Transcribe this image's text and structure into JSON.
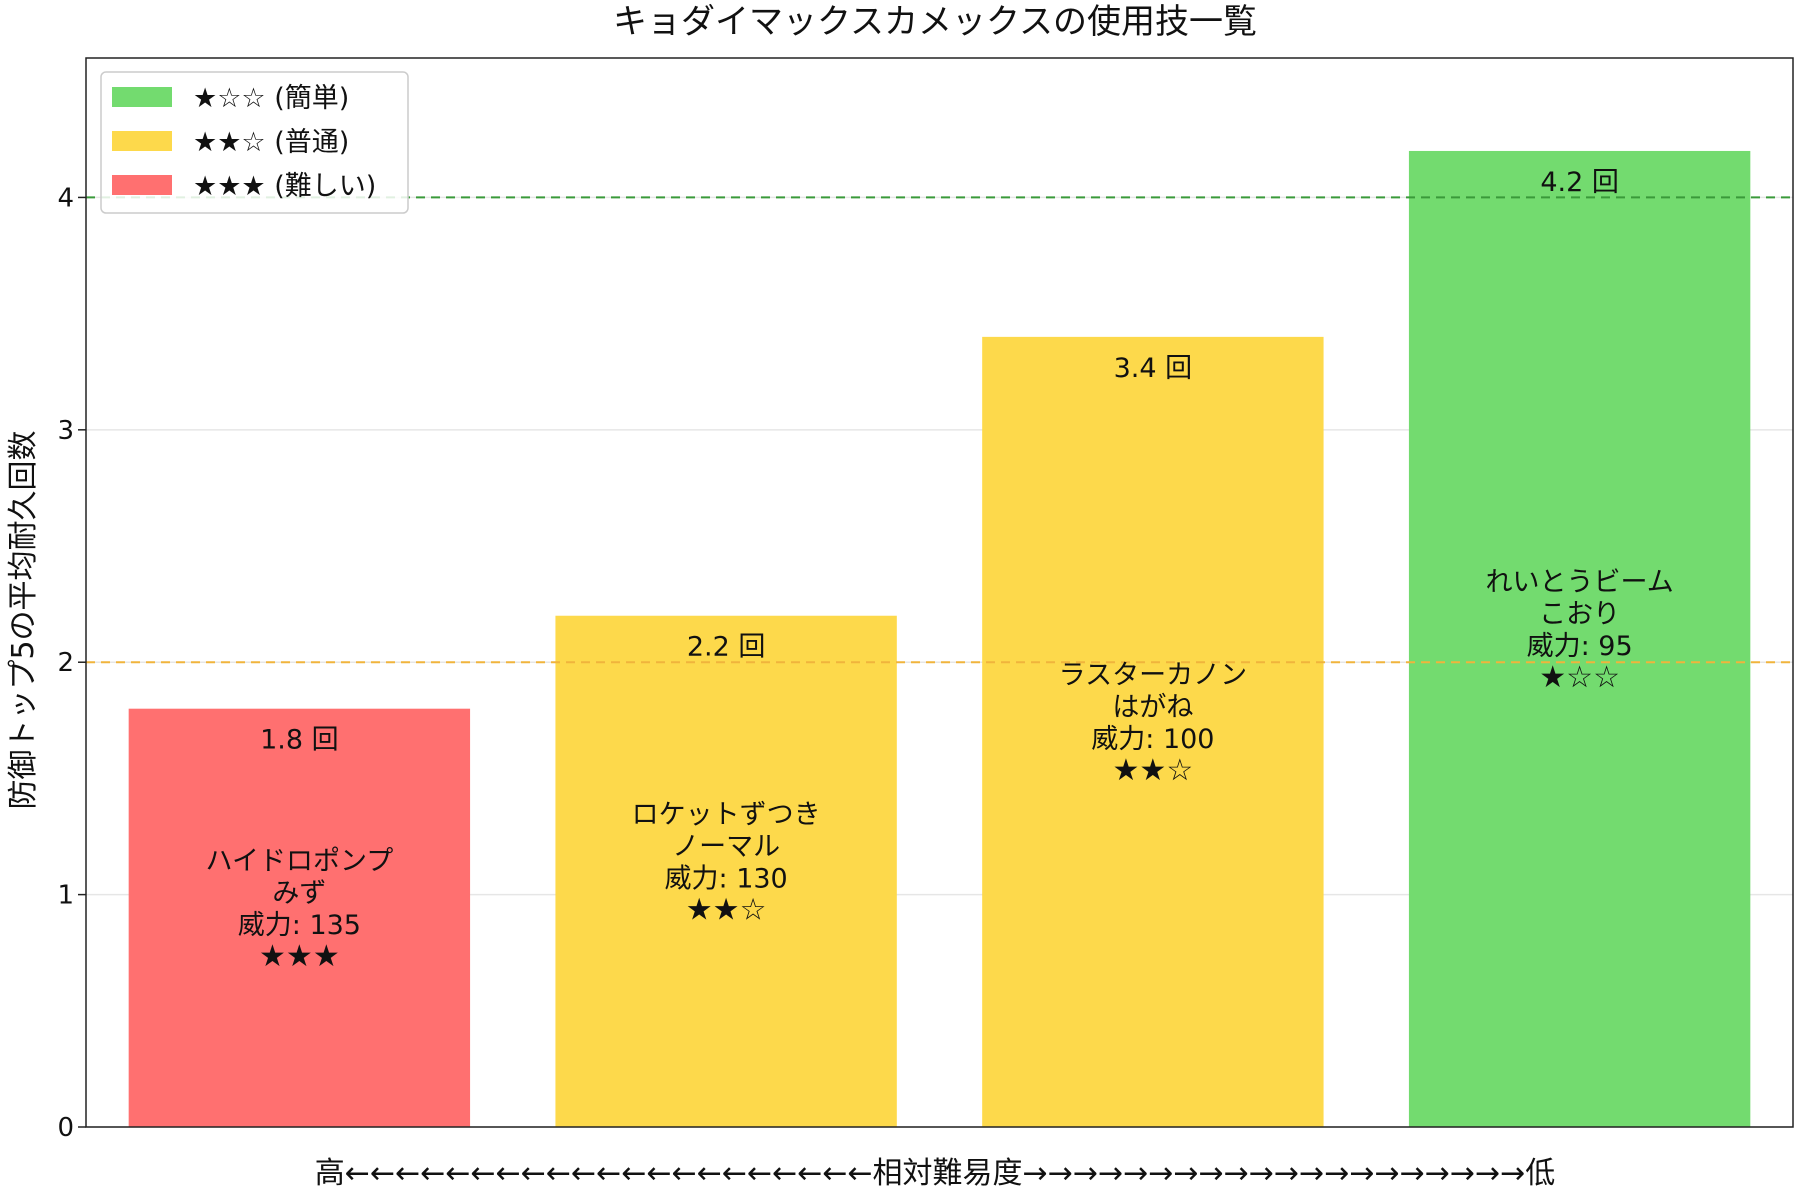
{
  "chart_data": {
    "type": "bar",
    "title": "キョダイマックスカメックスの使用技一覧",
    "ylabel": "防御トップ5の平均耐久回数",
    "xlabel": "高←←←←←←←←←←←←←←←←←←←←←相対難易度→→→→→→→→→→→→→→→→→→→→低",
    "ylim": [
      0,
      4.6
    ],
    "yticks": [
      0,
      1,
      2,
      3,
      4
    ],
    "grid": "horizontal",
    "reference_lines": [
      {
        "value": 4,
        "color": "#3a9a3a",
        "style": "dashed"
      },
      {
        "value": 2,
        "color": "#f0b43c",
        "style": "dashed"
      }
    ],
    "unit": "回",
    "bars": [
      {
        "name": "ハイドロポンプ",
        "type": "みず",
        "power_label": "威力: 135",
        "stars": "★★★",
        "value": 1.8,
        "value_label": "1.8 回",
        "color": "#ff7070"
      },
      {
        "name": "ロケットずつき",
        "type": "ノーマル",
        "power_label": "威力: 130",
        "stars": "★★☆",
        "value": 2.2,
        "value_label": "2.2 回",
        "color": "#fdd94b"
      },
      {
        "name": "ラスターカノン",
        "type": "はがね",
        "power_label": "威力: 100",
        "stars": "★★☆",
        "value": 3.4,
        "value_label": "3.4 回",
        "color": "#fdd94b"
      },
      {
        "name": "れいとうビーム",
        "type": "こおり",
        "power_label": "威力: 95",
        "stars": "★☆☆",
        "value": 4.2,
        "value_label": "4.2 回",
        "color": "#73db6f"
      }
    ],
    "legend": {
      "placement": "top-left",
      "entries": [
        {
          "label": "★☆☆ (簡単)",
          "color": "#73db6f"
        },
        {
          "label": "★★☆ (普通)",
          "color": "#fdd94b"
        },
        {
          "label": "★★★ (難しい)",
          "color": "#ff7070"
        }
      ]
    }
  }
}
